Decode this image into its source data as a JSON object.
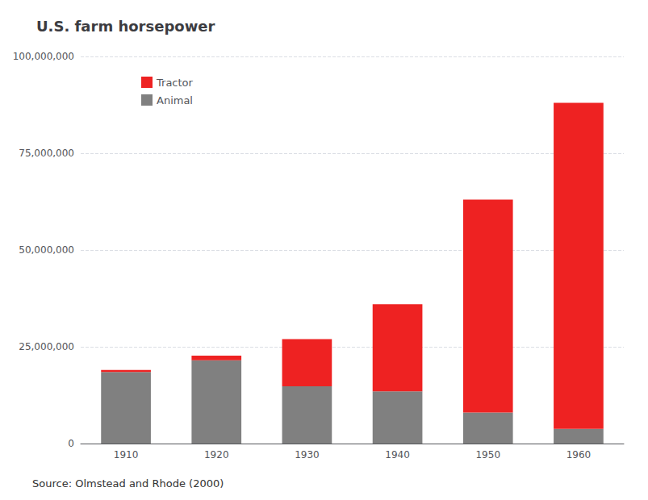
{
  "chart_data": {
    "type": "bar",
    "title": "U.S. farm horsepower",
    "categories": [
      "1910",
      "1920",
      "1930",
      "1940",
      "1950",
      "1960"
    ],
    "stacked": true,
    "series": [
      {
        "name": "Animal",
        "color": "#808080",
        "values": [
          18500000,
          21500000,
          14800000,
          13500000,
          8000000,
          3800000
        ]
      },
      {
        "name": "Tractor",
        "color": "#EE2222",
        "values": [
          500000,
          1200000,
          12200000,
          22500000,
          55000000,
          84200000
        ]
      }
    ],
    "legend": "upper left",
    "legend_order": [
      "Tractor",
      "Animal"
    ],
    "ylim": [
      0,
      100000000
    ],
    "yticks": [
      0,
      {
        "value": 25000000,
        "label": "25,000,000"
      },
      {
        "value": 50000000,
        "label": "50,000,000"
      },
      {
        "value": 75000000,
        "label": "75,000,000"
      },
      {
        "value": 100000000,
        "label": "100,000,000"
      }
    ],
    "grid": true,
    "annotations": [
      "Source: Olmstead and Rhode (2000)"
    ]
  }
}
